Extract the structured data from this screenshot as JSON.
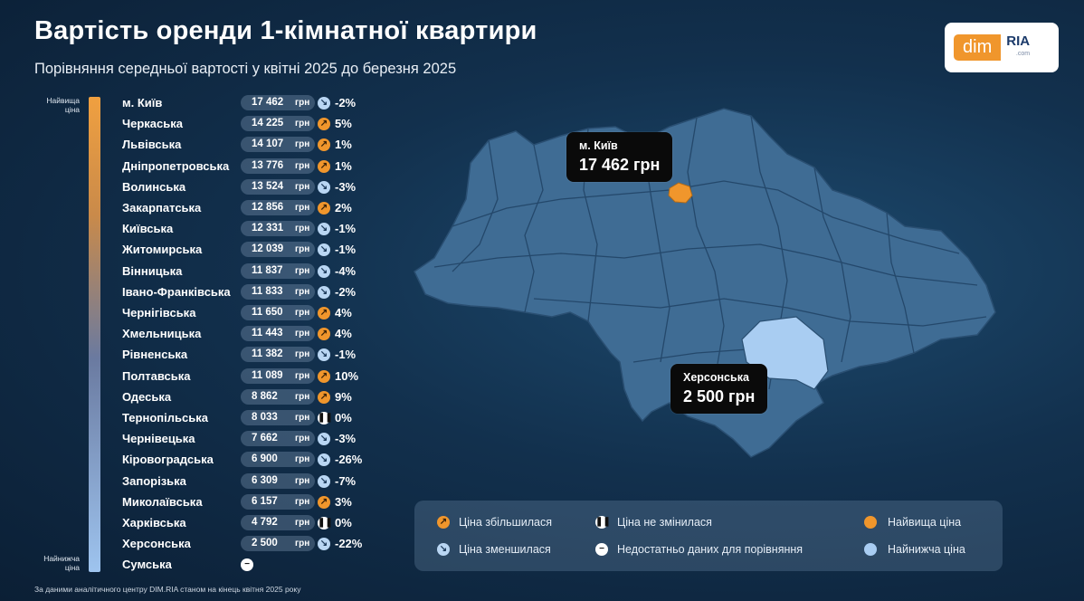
{
  "header": {
    "title": "Вартість оренди 1-кімнатної квартири",
    "subtitle": "Порівняння середньої вартості у квітні 2025 до березня 2025"
  },
  "logo": {
    "left": "dim",
    "right": "RIA",
    "right_small": ".com"
  },
  "scale": {
    "top_label": "Найвища ціна",
    "bottom_label": "Найнижча ціна"
  },
  "colors": {
    "increase": "#f0962c",
    "decrease": "#b9d6f3",
    "highest": "#f0962c",
    "lowest": "#a9cdf2",
    "region": "#3f6c94"
  },
  "currency": "грн",
  "chart_data": {
    "type": "table",
    "title": "Вартість оренди 1-кімнатної квартири",
    "columns": [
      "region",
      "price_uah",
      "trend",
      "change"
    ],
    "rows": [
      {
        "region": "м. Київ",
        "price": "17 462",
        "trend": "down",
        "change": "-2%"
      },
      {
        "region": "Черкаська",
        "price": "14 225",
        "trend": "up",
        "change": "5%"
      },
      {
        "region": "Львівська",
        "price": "14 107",
        "trend": "up",
        "change": "1%"
      },
      {
        "region": "Дніпропетровська",
        "price": "13 776",
        "trend": "up",
        "change": "1%"
      },
      {
        "region": "Волинська",
        "price": "13 524",
        "trend": "down",
        "change": "-3%"
      },
      {
        "region": "Закарпатська",
        "price": "12 856",
        "trend": "up",
        "change": "2%"
      },
      {
        "region": "Київська",
        "price": "12 331",
        "trend": "down",
        "change": "-1%"
      },
      {
        "region": "Житомирська",
        "price": "12 039",
        "trend": "down",
        "change": "-1%"
      },
      {
        "region": "Вінницька",
        "price": "11 837",
        "trend": "down",
        "change": "-4%"
      },
      {
        "region": "Івано-Франківська",
        "price": "11 833",
        "trend": "down",
        "change": "-2%"
      },
      {
        "region": "Чернігівська",
        "price": "11 650",
        "trend": "up",
        "change": "4%"
      },
      {
        "region": "Хмельницька",
        "price": "11 443",
        "trend": "up",
        "change": "4%"
      },
      {
        "region": "Рівненська",
        "price": "11 382",
        "trend": "down",
        "change": "-1%"
      },
      {
        "region": "Полтавська",
        "price": "11 089",
        "trend": "up",
        "change": "10%"
      },
      {
        "region": "Одеська",
        "price": "8 862",
        "trend": "up",
        "change": "9%"
      },
      {
        "region": "Тернопільська",
        "price": "8 033",
        "trend": "same",
        "change": "0%"
      },
      {
        "region": "Чернівецька",
        "price": "7 662",
        "trend": "down",
        "change": "-3%"
      },
      {
        "region": "Кіровоградська",
        "price": "6 900",
        "trend": "down",
        "change": "-26%"
      },
      {
        "region": "Запорізька",
        "price": "6 309",
        "trend": "down",
        "change": "-7%"
      },
      {
        "region": "Миколаївська",
        "price": "6 157",
        "trend": "up",
        "change": "3%"
      },
      {
        "region": "Харківська",
        "price": "4 792",
        "trend": "same",
        "change": "0%"
      },
      {
        "region": "Херсонська",
        "price": "2 500",
        "trend": "down",
        "change": "-22%"
      },
      {
        "region": "Сумська",
        "price": "",
        "trend": "na",
        "change": ""
      }
    ]
  },
  "callouts": {
    "kyiv": {
      "name": "м. Київ",
      "value": "17 462 грн"
    },
    "kherson": {
      "name": "Херсонська",
      "value": "2 500 грн"
    }
  },
  "legend": {
    "increase": "Ціна збільшилася",
    "decrease": "Ціна зменшилася",
    "same": "Ціна не змінилася",
    "na": "Недостатньо даних для порівняння",
    "highest": "Найвища ціна",
    "lowest": "Найнижча ціна"
  },
  "footnote": "За даними аналітичного центру DIM.RIA станом на кінець квітня 2025 року"
}
